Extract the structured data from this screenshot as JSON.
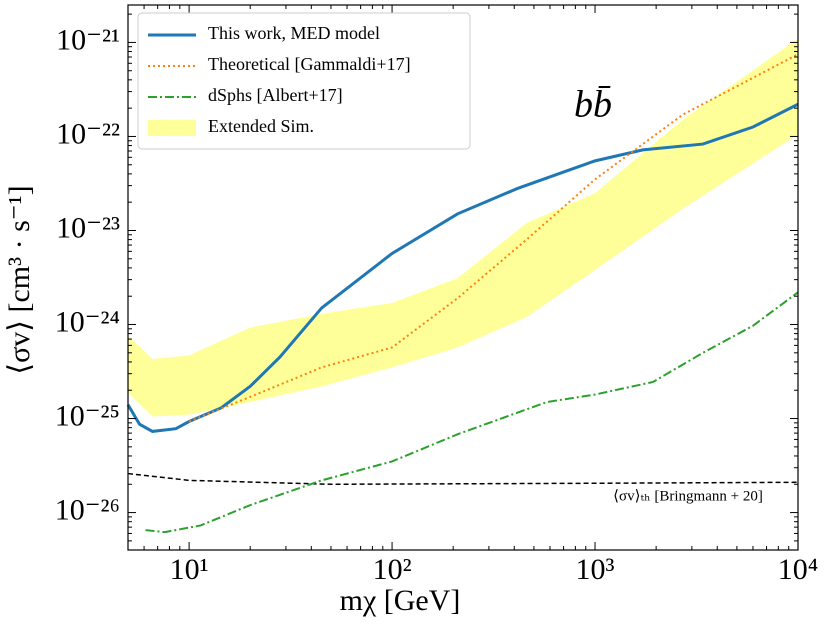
{
  "chart_data": {
    "type": "line",
    "xlabel": "mχ [GeV]",
    "ylabel": "⟨σv⟩ [cm³ · s⁻¹]",
    "annotations": [
      "bb̄",
      "⟨σv⟩ₜₕ [Bringmann + 20]"
    ],
    "xscale": "log",
    "yscale": "log",
    "xlim": [
      5,
      10000
    ],
    "ylim": [
      4e-27,
      2.5e-21
    ],
    "xticks": [
      {
        "value": 10,
        "label": "10¹"
      },
      {
        "value": 100,
        "label": "10²"
      },
      {
        "value": 1000,
        "label": "10³"
      },
      {
        "value": 10000,
        "label": "10⁴"
      }
    ],
    "yticks": [
      {
        "value": 1e-26,
        "label": "10⁻²⁶"
      },
      {
        "value": 1e-25,
        "label": "10⁻²⁵"
      },
      {
        "value": 1e-24,
        "label": "10⁻²⁴"
      },
      {
        "value": 1e-23,
        "label": "10⁻²³"
      },
      {
        "value": 1e-22,
        "label": "10⁻²²"
      },
      {
        "value": 1e-21,
        "label": "10⁻²¹"
      }
    ],
    "legend": "upper left",
    "series": [
      {
        "name": "This work, MED model",
        "color": "#1f77b4",
        "linestyle": "solid",
        "x": [
          5,
          5.7,
          6.6,
          8.6,
          10,
          14.4,
          20,
          28,
          45,
          100,
          210,
          415,
          1000,
          1720,
          3400,
          6000,
          10000
        ],
        "values": [
          1.4e-25,
          8.7e-26,
          7.3e-26,
          7.8e-26,
          9.3e-26,
          1.3e-25,
          2.2e-25,
          4.5e-25,
          1.5e-24,
          5.7e-24,
          1.5e-23,
          2.8e-23,
          5.5e-23,
          7.2e-23,
          8.3e-23,
          1.26e-22,
          2.2e-22
        ]
      },
      {
        "name": "Theoretical [Gammaldi+17]",
        "color": "#ff7f0e",
        "linestyle": "dotted",
        "x": [
          10,
          20,
          45,
          100,
          210,
          460,
          1000,
          2700,
          10000
        ],
        "values": [
          9.3e-26,
          1.7e-25,
          3.5e-25,
          5.7e-25,
          1.9e-24,
          8e-24,
          3.5e-23,
          1.7e-22,
          7.5e-22
        ]
      },
      {
        "name": "dSphs [Albert+17]",
        "color": "#2ca02c",
        "linestyle": "dashdot",
        "x": [
          6.1,
          7.6,
          11.4,
          20,
          45,
          100,
          210,
          580,
          1000,
          1930,
          3400,
          6000,
          10000
        ],
        "values": [
          6.5e-27,
          6.2e-27,
          7.3e-27,
          1.2e-26,
          2.2e-26,
          3.5e-26,
          6.8e-26,
          1.5e-25,
          1.8e-25,
          2.45e-25,
          5e-25,
          9.7e-25,
          2.2e-24
        ]
      }
    ],
    "threshold": {
      "color": "#000000",
      "linestyle": "dashed",
      "x": [
        5,
        10,
        50,
        1000,
        10000
      ],
      "values": [
        2.6e-26,
        2.2e-26,
        2e-26,
        2.05e-26,
        2.1e-26
      ]
    },
    "band": {
      "name": "Extended Sim.",
      "color": "#ffff99",
      "x": [
        5,
        6.6,
        10,
        20,
        45,
        100,
        210,
        460,
        1000,
        2700,
        10000
      ],
      "upper": [
        7.6e-25,
        4.3e-25,
        4.7e-25,
        9.3e-25,
        1.3e-24,
        1.7e-24,
        3.1e-24,
        1.2e-23,
        2.5e-23,
        1.5e-22,
        1.1e-21
      ],
      "lower": [
        1.9e-25,
        1.05e-25,
        1.1e-25,
        1.5e-25,
        2.2e-25,
        3.5e-25,
        5.7e-25,
        1.2e-24,
        3.8e-24,
        1.7e-23,
        1.05e-22
      ]
    }
  }
}
